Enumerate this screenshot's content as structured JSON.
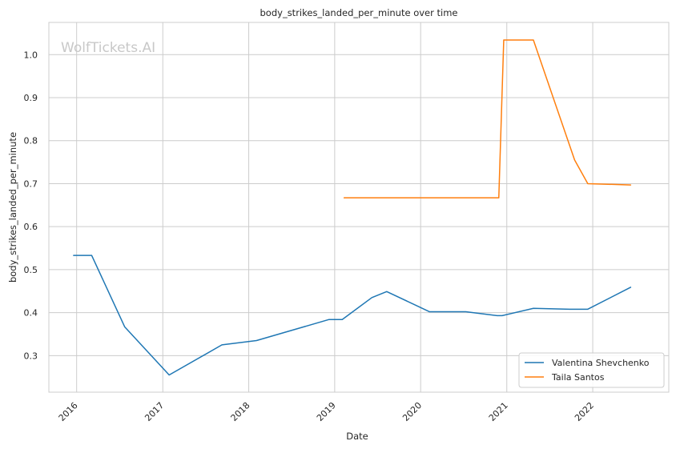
{
  "watermark": "WolfTickets.AI",
  "chart_data": {
    "type": "line",
    "title": "body_strikes_landed_per_minute over time",
    "xlabel": "Date",
    "ylabel": "body_strikes_landed_per_minute",
    "xlim": [
      "2015-09-05",
      "2022-11-20"
    ],
    "ylim": [
      0.215,
      1.075
    ],
    "x_ticks": [
      "2016",
      "2017",
      "2018",
      "2019",
      "2020",
      "2021",
      "2022"
    ],
    "y_ticks": [
      "0.3",
      "0.4",
      "0.5",
      "0.6",
      "0.7",
      "0.8",
      "0.9",
      "1.0"
    ],
    "grid": true,
    "legend_position": "lower-right",
    "series": [
      {
        "name": "Valentina Shevchenko",
        "color": "#1f77b4",
        "points": [
          [
            "2015-12-19",
            0.533
          ],
          [
            "2016-03-05",
            0.533
          ],
          [
            "2016-07-23",
            0.367
          ],
          [
            "2017-01-28",
            0.255
          ],
          [
            "2017-09-09",
            0.325
          ],
          [
            "2018-02-03",
            0.335
          ],
          [
            "2018-12-08",
            0.384
          ],
          [
            "2019-02-02",
            0.384
          ],
          [
            "2019-06-08",
            0.435
          ],
          [
            "2019-08-10",
            0.449
          ],
          [
            "2020-02-08",
            0.402
          ],
          [
            "2020-07-11",
            0.402
          ],
          [
            "2020-11-21",
            0.393
          ],
          [
            "2020-12-12",
            0.393
          ],
          [
            "2021-04-24",
            0.41
          ],
          [
            "2021-09-25",
            0.408
          ],
          [
            "2021-12-11",
            0.408
          ],
          [
            "2022-06-11",
            0.459
          ]
        ]
      },
      {
        "name": "Taila Santos",
        "color": "#ff7f0e",
        "points": [
          [
            "2019-02-10",
            0.667
          ],
          [
            "2020-11-28",
            0.667
          ],
          [
            "2020-12-19",
            1.034
          ],
          [
            "2021-04-24",
            1.034
          ],
          [
            "2021-10-16",
            0.755
          ],
          [
            "2021-12-11",
            0.7
          ],
          [
            "2022-06-11",
            0.697
          ]
        ]
      }
    ]
  }
}
